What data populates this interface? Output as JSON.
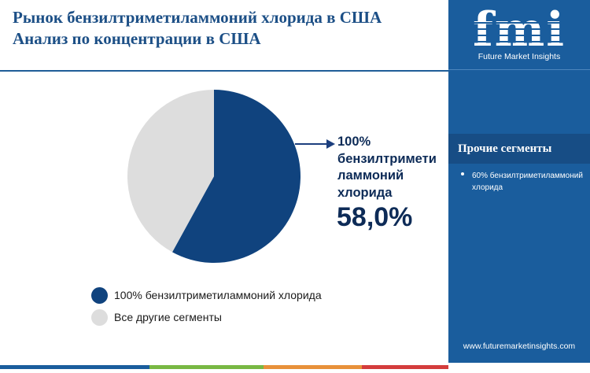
{
  "header": {
    "title_line1": "Рынок бензилтриметиламмоний хлорида в США",
    "title_line2": "Анализ по концентрации в США"
  },
  "chart_data": {
    "type": "pie",
    "slices": [
      {
        "label": "100% бензилтриметиламмоний хлорида",
        "value": 58.0,
        "color": "#10437e"
      },
      {
        "label": "Все другие сегменты",
        "value": 42.0,
        "color": "#dddddd"
      }
    ],
    "callout": {
      "label": "100% бензилтримети ламмоний хлорида",
      "value_text": "58,0%"
    },
    "legend": [
      {
        "label": "100% бензилтриметиламмоний хлорида",
        "color": "#10437e"
      },
      {
        "label": "Все другие сегменты",
        "color": "#dddddd"
      }
    ]
  },
  "sidebar": {
    "logo_text": "fmi",
    "logo_caption": "Future Market Insights",
    "others_heading": "Прочие сегменты",
    "others_items": [
      "60% бензилтриметиламмоний хлорида"
    ],
    "website": "www.futuremarketinsights.com"
  },
  "colors": {
    "sidebar_bg": "#1a5d9d",
    "title": "#1c4f86",
    "footer": [
      "#1a5d9d",
      "#78b843",
      "#e8913a",
      "#d43c3c"
    ]
  }
}
